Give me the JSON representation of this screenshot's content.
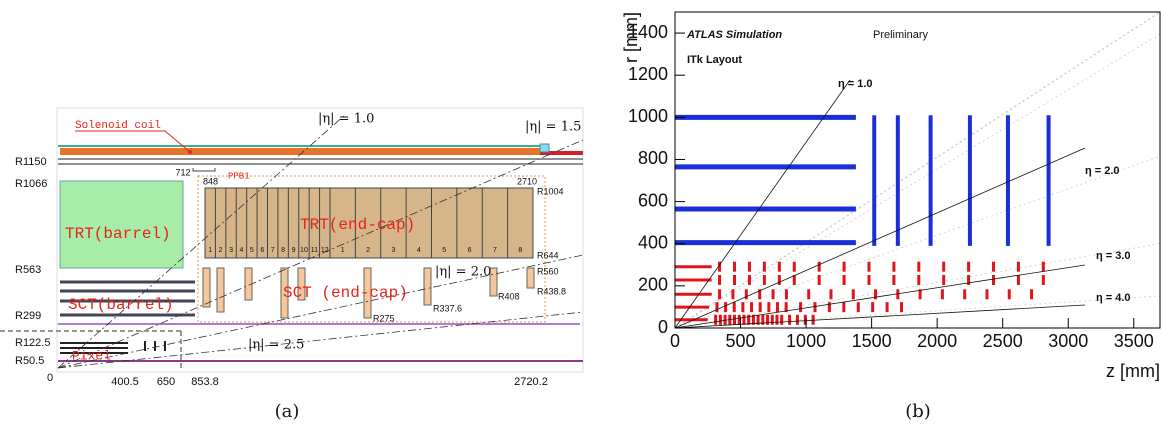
{
  "panel_a": {
    "caption": "(a)",
    "eta_labels": [
      "|η| = 1.0",
      "|η| = 1.5",
      "|η| = 2.0",
      "|η| = 2.5"
    ],
    "solenoid": "Solenoid coil",
    "ppb": "PPB1",
    "trt_barrel": "TRT(barrel)",
    "trt_endcap": "TRT(end-cap)",
    "sct_barrel": "SCT(barrel)",
    "sct_endcap": "SCT (end-cap)",
    "pixel": "Pixel",
    "r_labels": [
      "R1150",
      "R1066",
      "R563",
      "R299",
      "R122.5",
      "R50.5"
    ],
    "z_labels": [
      "0",
      "400.5",
      "650",
      "853.8",
      "2720.2"
    ],
    "dimension_labels": [
      "712",
      "848",
      "2710",
      "R1004",
      "R644",
      "R560",
      "R438.8",
      "R408",
      "R337.6",
      "R275"
    ],
    "trt_wheels_a": [
      "1",
      "2",
      "3",
      "4",
      "5",
      "6",
      "7",
      "8",
      "9",
      "10",
      "11",
      "12"
    ],
    "trt_wheels_b": [
      "1",
      "2",
      "3",
      "4",
      "5",
      "6",
      "7",
      "8"
    ]
  },
  "panel_b": {
    "caption": "(b)",
    "title": "ATLAS Simulation",
    "subtitle": "Preliminary",
    "layout_label": "ITk Layout",
    "x_label": "z [mm]",
    "y_label": "r [mm]",
    "xlim": [
      0,
      3700
    ],
    "ylim": [
      0,
      1500
    ],
    "xticks": [
      0,
      500,
      1000,
      1500,
      2000,
      2500,
      3000,
      3500
    ],
    "yticks": [
      0,
      200,
      400,
      600,
      800,
      1000,
      1200,
      1400
    ],
    "eta_labels": [
      "η = 1.0",
      "η = 2.0",
      "η = 3.0",
      "η = 4.0"
    ]
  }
}
